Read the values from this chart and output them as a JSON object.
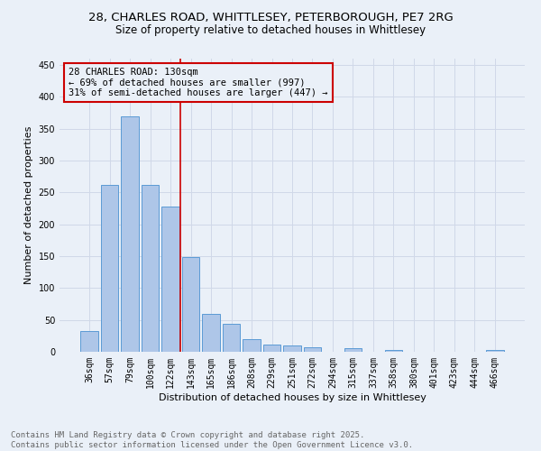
{
  "title_line1": "28, CHARLES ROAD, WHITTLESEY, PETERBOROUGH, PE7 2RG",
  "title_line2": "Size of property relative to detached houses in Whittlesey",
  "xlabel": "Distribution of detached houses by size in Whittlesey",
  "ylabel": "Number of detached properties",
  "bar_labels": [
    "36sqm",
    "57sqm",
    "79sqm",
    "100sqm",
    "122sqm",
    "143sqm",
    "165sqm",
    "186sqm",
    "208sqm",
    "229sqm",
    "251sqm",
    "272sqm",
    "294sqm",
    "315sqm",
    "337sqm",
    "358sqm",
    "380sqm",
    "401sqm",
    "423sqm",
    "444sqm",
    "466sqm"
  ],
  "bar_values": [
    33,
    262,
    370,
    262,
    228,
    148,
    59,
    44,
    20,
    11,
    10,
    7,
    0,
    5,
    0,
    3,
    0,
    0,
    0,
    0,
    3
  ],
  "bar_color": "#aec6e8",
  "bar_edge_color": "#5b9bd5",
  "grid_color": "#d0d8e8",
  "bg_color": "#eaf0f8",
  "annotation_box_text": "28 CHARLES ROAD: 130sqm\n← 69% of detached houses are smaller (997)\n31% of semi-detached houses are larger (447) →",
  "annotation_box_color": "#cc0000",
  "vline_x": 4.5,
  "vline_color": "#cc0000",
  "ylim": [
    0,
    460
  ],
  "yticks": [
    0,
    50,
    100,
    150,
    200,
    250,
    300,
    350,
    400,
    450
  ],
  "footer_line1": "Contains HM Land Registry data © Crown copyright and database right 2025.",
  "footer_line2": "Contains public sector information licensed under the Open Government Licence v3.0.",
  "title_fontsize": 9.5,
  "subtitle_fontsize": 8.5,
  "axis_label_fontsize": 8,
  "tick_fontsize": 7,
  "annotation_fontsize": 7.5,
  "footer_fontsize": 6.5
}
